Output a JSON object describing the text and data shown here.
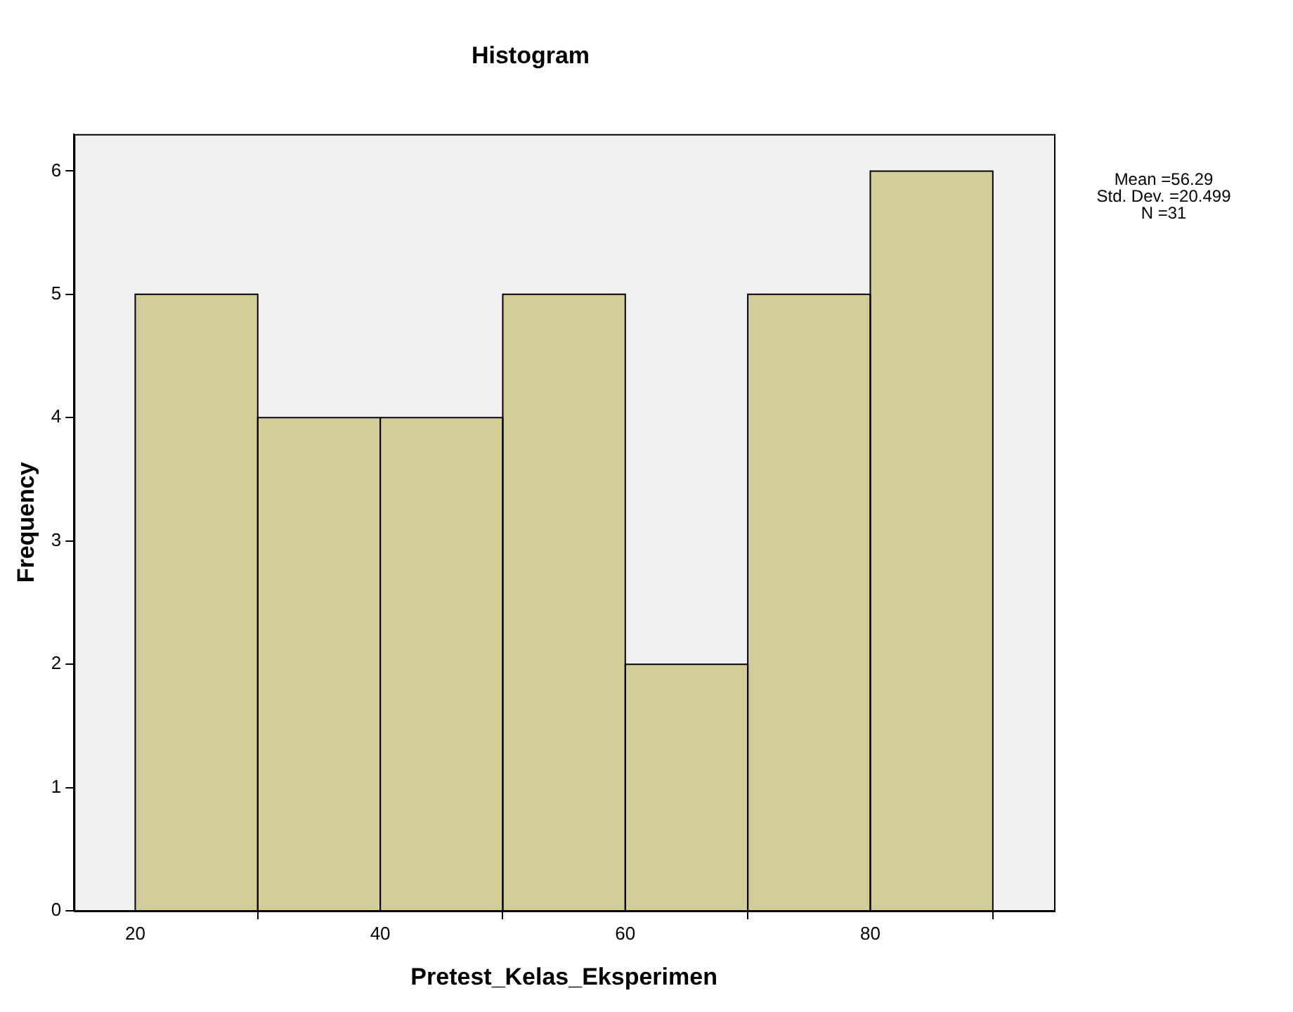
{
  "chart_data": {
    "type": "histogram",
    "title": "Histogram",
    "xlabel": "Pretest_Kelas_Eksperimen",
    "ylabel": "Frequency",
    "bins": [
      20,
      30,
      40,
      50,
      60,
      70,
      80,
      90
    ],
    "values": [
      5,
      4,
      4,
      5,
      2,
      5,
      6
    ],
    "color": "#d3ce97",
    "xlim": [
      15,
      95
    ],
    "xticks": [
      20,
      40,
      60,
      80
    ],
    "ylim": [
      0,
      6.3
    ],
    "yticks": [
      0,
      1,
      2,
      3,
      4,
      5,
      6
    ],
    "grid": false,
    "legend": false,
    "annotations": [
      "Mean =56.29",
      "Std. Dev. =20.499",
      "N =31"
    ]
  }
}
